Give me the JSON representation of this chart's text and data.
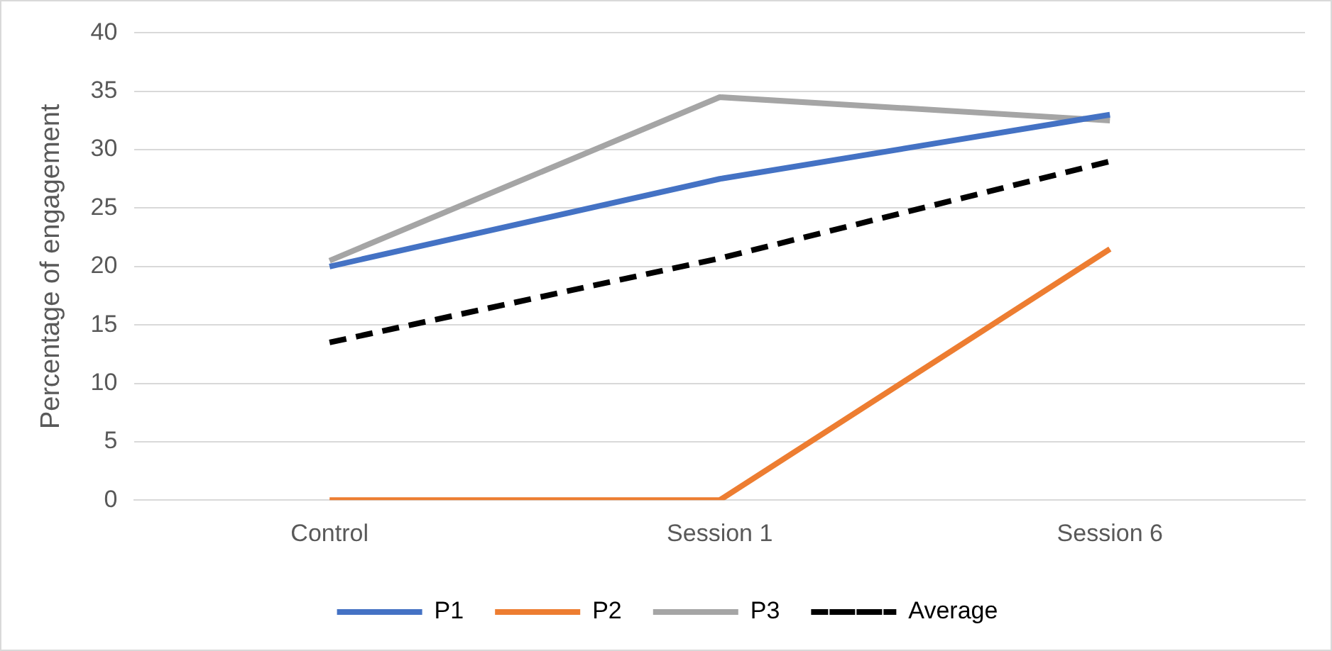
{
  "chart_data": {
    "type": "line",
    "ylabel": "Percentage of engagement",
    "categories": [
      "Control",
      "Session 1",
      "Session 6"
    ],
    "series": [
      {
        "name": "P1",
        "color": "#4472c4",
        "values": [
          20,
          27.5,
          33
        ]
      },
      {
        "name": "P2",
        "color": "#ed7d31",
        "values": [
          0,
          0,
          21.5
        ]
      },
      {
        "name": "P3",
        "color": "#a5a5a5",
        "values": [
          20.5,
          34.5,
          32.5
        ]
      },
      {
        "name": "Average",
        "color": "#000000",
        "values": [
          13.5,
          20.7,
          29
        ],
        "line_style": "dashed"
      }
    ],
    "ylim": [
      0,
      40
    ],
    "yticks": [
      0,
      5,
      10,
      15,
      20,
      25,
      30,
      35,
      40
    ],
    "grid": "y",
    "legend": "bottom",
    "marker": "none"
  }
}
